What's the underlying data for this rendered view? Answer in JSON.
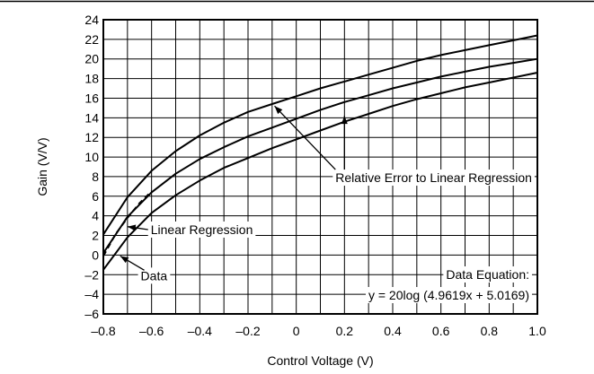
{
  "chart_data": {
    "type": "line",
    "title": "",
    "xlabel": "Control Voltage (V)",
    "ylabel": "Gain (V/V)",
    "xlim": [
      -0.8,
      1.0
    ],
    "ylim": [
      -6,
      24
    ],
    "grid": true,
    "x_ticks": [
      -0.8,
      -0.6,
      -0.4,
      -0.2,
      0,
      0.2,
      0.4,
      0.6,
      0.8,
      1.0
    ],
    "x_tick_labels": [
      "–0.8",
      "–0.6",
      "–0.4",
      "–0.2",
      "0",
      "0.2",
      "0.4",
      "0.6",
      "0.8",
      "1.0"
    ],
    "y_ticks": [
      -6,
      -4,
      -2,
      0,
      2,
      4,
      6,
      8,
      10,
      12,
      14,
      16,
      18,
      20,
      22,
      24
    ],
    "y_tick_labels": [
      "–6",
      "–4",
      "–2",
      "0",
      "2",
      "4",
      "6",
      "8",
      "10",
      "12",
      "14",
      "16",
      "18",
      "20",
      "22",
      "24"
    ],
    "series": [
      {
        "style": "solid",
        "x": [
          -0.8,
          -0.7,
          -0.6,
          -0.5,
          -0.4,
          -0.3,
          -0.2,
          -0.1,
          0,
          0.1,
          0.2,
          0.3,
          0.4,
          0.5,
          0.6,
          0.7,
          0.8,
          0.9,
          1.0
        ],
        "y": [
          2.1,
          5.9,
          8.6,
          10.6,
          12.2,
          13.5,
          14.6,
          15.4,
          16.2,
          17.0,
          17.7,
          18.4,
          19.1,
          19.8,
          20.4,
          20.9,
          21.4,
          21.9,
          22.4
        ]
      },
      {
        "style": "solid",
        "x": [
          -0.8,
          -0.7,
          -0.6,
          -0.5,
          -0.4,
          -0.3,
          -0.2,
          -0.1,
          0,
          0.1,
          0.2,
          0.3,
          0.4,
          0.5,
          0.6,
          0.7,
          0.8,
          0.9,
          1.0
        ],
        "y": [
          0.2,
          3.9,
          6.4,
          8.3,
          9.8,
          11.0,
          12.1,
          13.0,
          13.9,
          14.8,
          15.6,
          16.3,
          17.0,
          17.6,
          18.2,
          18.7,
          19.2,
          19.6,
          20.0
        ]
      },
      {
        "style": "dashed",
        "x": [
          -0.8,
          -0.75,
          -0.7,
          -0.65,
          -0.6
        ],
        "y": [
          -0.1,
          2.1,
          3.8,
          5.3,
          6.5
        ]
      },
      {
        "style": "solid",
        "x": [
          -0.8,
          -0.7,
          -0.6,
          -0.5,
          -0.4,
          -0.3,
          -0.2,
          -0.1,
          0,
          0.1,
          0.2,
          0.3,
          0.4,
          0.5,
          0.6,
          0.7,
          0.8,
          0.9,
          1.0
        ],
        "y": [
          -1.5,
          1.8,
          4.3,
          6.1,
          7.6,
          8.9,
          9.9,
          10.9,
          11.8,
          12.7,
          13.6,
          14.4,
          15.2,
          15.9,
          16.5,
          17.1,
          17.6,
          18.1,
          18.6
        ]
      }
    ],
    "annotations": [
      {
        "text": "Relative Error to Linear Regression",
        "label_x": 0.57,
        "label_y": 7.9,
        "anchor": "middle",
        "arrows": [
          [
            -0.09,
            15.2
          ],
          [
            0.2,
            14.2
          ]
        ]
      },
      {
        "text": "Linear Regression",
        "label_x": -0.18,
        "label_y": 2.6,
        "anchor": "end",
        "arrows": [
          [
            -0.7,
            2.9
          ]
        ]
      },
      {
        "text": "Data",
        "label_x": -0.59,
        "label_y": -2.1,
        "anchor": "middle",
        "arrows": [
          [
            -0.73,
            -0.1
          ]
        ]
      }
    ],
    "equation_label": "Data Equation:",
    "equation": "y = 20log (4.9619x + 5.0169)"
  }
}
